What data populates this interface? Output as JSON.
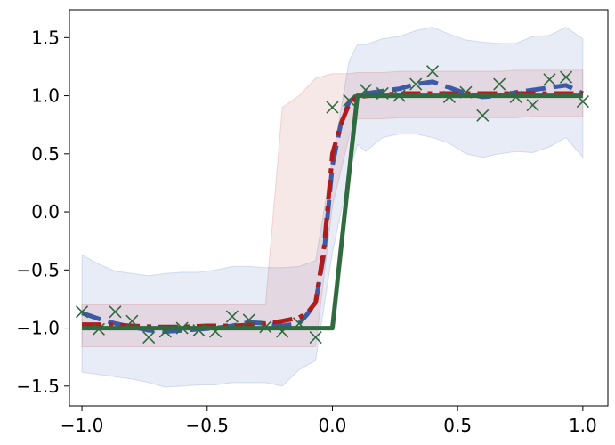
{
  "chart_data": {
    "type": "line",
    "title": "",
    "xlabel": "",
    "ylabel": "",
    "xlim": [
      -1.05,
      1.1
    ],
    "ylim": [
      -1.67,
      1.74
    ],
    "grid": false,
    "legend": "none",
    "x_ticks": [
      -1.0,
      -0.5,
      0.0,
      0.5,
      1.0
    ],
    "x_tick_labels": [
      "−1.0",
      "−0.5",
      "0.0",
      "0.5",
      "1.0"
    ],
    "y_ticks": [
      1.5,
      1.0,
      0.5,
      0.0,
      -0.5,
      -1.0,
      -1.5
    ],
    "y_tick_labels": [
      "1.5",
      "1.0",
      "0.5",
      "0.0",
      "−0.5",
      "−1.0",
      "−1.5"
    ],
    "bands": [
      {
        "color": "#4c6fbf",
        "opacity": 0.13,
        "x": [
          -1.0,
          -0.933,
          -0.867,
          -0.8,
          -0.733,
          -0.667,
          -0.6,
          -0.533,
          -0.467,
          -0.4,
          -0.333,
          -0.267,
          -0.2,
          -0.133,
          -0.067,
          0.0,
          0.067,
          0.1,
          0.133,
          0.2,
          0.267,
          0.333,
          0.4,
          0.467,
          0.533,
          0.6,
          0.667,
          0.733,
          0.8,
          0.867,
          0.933,
          1.0
        ],
        "upper": [
          -0.37,
          -0.45,
          -0.51,
          -0.53,
          -0.55,
          -0.53,
          -0.52,
          -0.52,
          -0.5,
          -0.47,
          -0.47,
          -0.48,
          -0.48,
          -0.47,
          -0.42,
          0.45,
          1.3,
          1.44,
          1.44,
          1.49,
          1.51,
          1.56,
          1.59,
          1.53,
          1.48,
          1.46,
          1.45,
          1.45,
          1.51,
          1.52,
          1.59,
          1.49
        ],
        "lower": [
          -1.38,
          -1.4,
          -1.42,
          -1.44,
          -1.47,
          -1.51,
          -1.5,
          -1.49,
          -1.49,
          -1.47,
          -1.47,
          -1.47,
          -1.5,
          -1.36,
          -1.28,
          -0.35,
          0.33,
          0.58,
          0.52,
          0.64,
          0.67,
          0.67,
          0.64,
          0.59,
          0.5,
          0.47,
          0.5,
          0.52,
          0.51,
          0.56,
          0.64,
          0.47
        ]
      },
      {
        "color": "#c0504d",
        "opacity": 0.13,
        "x": [
          -1.0,
          -0.933,
          -0.867,
          -0.8,
          -0.733,
          -0.667,
          -0.6,
          -0.533,
          -0.467,
          -0.4,
          -0.333,
          -0.267,
          -0.2,
          -0.133,
          -0.067,
          0.0,
          0.067,
          0.1,
          0.133,
          0.2,
          0.267,
          0.333,
          0.4,
          0.467,
          0.533,
          0.6,
          0.667,
          0.733,
          0.8,
          0.867,
          0.933,
          1.0
        ],
        "upper": [
          -0.8,
          -0.8,
          -0.8,
          -0.8,
          -0.8,
          -0.8,
          -0.8,
          -0.8,
          -0.8,
          -0.8,
          -0.8,
          -0.8,
          0.9,
          1.0,
          1.15,
          1.19,
          1.19,
          1.2,
          1.2,
          1.2,
          1.21,
          1.21,
          1.21,
          1.21,
          1.21,
          1.21,
          1.21,
          1.22,
          1.22,
          1.22,
          1.22,
          1.22
        ],
        "lower": [
          -1.16,
          -1.16,
          -1.16,
          -1.16,
          -1.16,
          -1.16,
          -1.16,
          -1.16,
          -1.16,
          -1.16,
          -1.16,
          -1.16,
          -1.16,
          -1.16,
          -1.16,
          0.05,
          0.65,
          0.8,
          0.8,
          0.8,
          0.81,
          0.81,
          0.81,
          0.81,
          0.81,
          0.81,
          0.81,
          0.81,
          0.82,
          0.82,
          0.82,
          0.82
        ]
      }
    ],
    "series": [
      {
        "color": "#3d5aa8",
        "style": "dashed",
        "x": [
          -1.0,
          -0.933,
          -0.867,
          -0.8,
          -0.733,
          -0.667,
          -0.6,
          -0.533,
          -0.467,
          -0.4,
          -0.333,
          -0.267,
          -0.2,
          -0.133,
          -0.1,
          -0.067,
          -0.033,
          0.0,
          0.033,
          0.067,
          0.1,
          0.133,
          0.2,
          0.267,
          0.333,
          0.4,
          0.467,
          0.533,
          0.6,
          0.667,
          0.733,
          0.8,
          0.867,
          0.933,
          1.0
        ],
        "y": [
          -0.87,
          -0.92,
          -0.96,
          -0.99,
          -1.02,
          -1.03,
          -1.02,
          -1.01,
          -1.0,
          -0.98,
          -0.95,
          -0.96,
          -0.98,
          -0.96,
          -0.88,
          -0.78,
          -0.35,
          0.4,
          0.75,
          0.95,
          1.0,
          1.02,
          1.04,
          1.06,
          1.1,
          1.12,
          1.07,
          1.02,
          0.99,
          1.0,
          1.03,
          1.05,
          1.07,
          1.09,
          1.02
        ]
      },
      {
        "color": "#b01c1c",
        "style": "dashdot",
        "x": [
          -1.0,
          -0.9,
          -0.8,
          -0.7,
          -0.6,
          -0.5,
          -0.4,
          -0.3,
          -0.2,
          -0.133,
          -0.1,
          -0.067,
          -0.033,
          -0.01,
          0.0,
          0.033,
          0.067,
          0.1,
          0.2,
          0.3,
          0.4,
          0.5,
          0.6,
          0.7,
          0.8,
          0.9,
          1.0
        ],
        "y": [
          -0.97,
          -0.97,
          -0.98,
          -0.99,
          -0.99,
          -0.98,
          -0.98,
          -0.97,
          -0.94,
          -0.91,
          -0.87,
          -0.78,
          -0.3,
          0.25,
          0.5,
          0.75,
          0.93,
          0.99,
          1.01,
          1.02,
          1.02,
          1.02,
          1.02,
          1.02,
          1.02,
          1.02,
          1.02
        ]
      },
      {
        "color": "#2f6b3f",
        "style": "solid",
        "x": [
          -1.0,
          0.0,
          0.1,
          1.0
        ],
        "y": [
          -1.0,
          -1.0,
          1.0,
          1.0
        ]
      }
    ],
    "points": {
      "color": "#2f6b3f",
      "marker": "x",
      "x": [
        -1.0,
        -0.933,
        -0.867,
        -0.8,
        -0.733,
        -0.667,
        -0.6,
        -0.533,
        -0.467,
        -0.4,
        -0.333,
        -0.267,
        -0.2,
        -0.133,
        -0.067,
        0.0,
        0.067,
        0.133,
        0.2,
        0.267,
        0.333,
        0.4,
        0.467,
        0.533,
        0.6,
        0.667,
        0.733,
        0.8,
        0.867,
        0.933,
        1.0
      ],
      "y": [
        -0.86,
        -1.01,
        -0.86,
        -0.94,
        -1.08,
        -1.03,
        -1.0,
        -1.02,
        -1.03,
        -0.9,
        -0.93,
        -0.99,
        -1.03,
        -0.96,
        -1.08,
        0.9,
        0.96,
        1.05,
        1.02,
        1.0,
        1.1,
        1.21,
        0.99,
        1.03,
        0.83,
        1.1,
        0.99,
        0.92,
        1.14,
        1.16,
        0.95
      ]
    }
  }
}
